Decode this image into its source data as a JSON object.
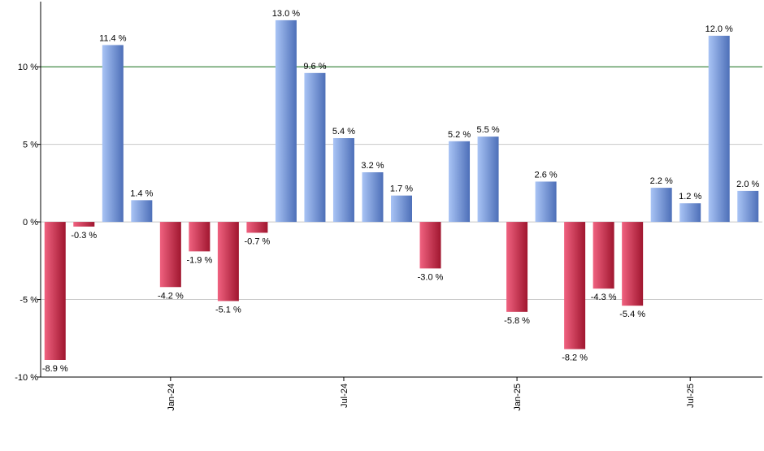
{
  "chart_data": {
    "type": "bar",
    "title": "",
    "xlabel": "",
    "ylabel": "",
    "ylim": [
      -10,
      14.2
    ],
    "yticks": [
      {
        "value": -10,
        "label": "-10 %"
      },
      {
        "value": -5,
        "label": "-5 %"
      },
      {
        "value": 0,
        "label": "0 %"
      },
      {
        "value": 5,
        "label": "5 %"
      },
      {
        "value": 10,
        "label": "10 %"
      }
    ],
    "reference_line": {
      "value": 10,
      "color": "#2e7d32"
    },
    "grid": true,
    "colors": {
      "positive_light": "#a9c4f5",
      "positive_dark": "#4d6fb8",
      "negative_light": "#f06280",
      "negative_dark": "#a0162f",
      "gridline": "#c8c8c8",
      "axis": "#000000"
    },
    "values": [
      -8.9,
      -0.3,
      11.4,
      1.4,
      -4.2,
      -1.9,
      -5.1,
      -0.7,
      13.0,
      9.6,
      5.4,
      3.2,
      1.7,
      -3.0,
      5.2,
      5.5,
      -5.8,
      2.6,
      -8.2,
      -4.3,
      -5.4,
      2.2,
      1.2,
      12.0,
      2.0
    ],
    "value_labels": [
      "-8.9 %",
      "-0.3 %",
      "11.4 %",
      "1.4 %",
      "-4.2 %",
      "-1.9 %",
      "-5.1 %",
      "-0.7 %",
      "13.0 %",
      "9.6 %",
      "5.4 %",
      "3.2 %",
      "1.7 %",
      "-3.0 %",
      "5.2 %",
      "5.5 %",
      "-5.8 %",
      "2.6 %",
      "-8.2 %",
      "-4.3 %",
      "-5.4 %",
      "2.2 %",
      "1.2 %",
      "12.0 %",
      "2.0 %"
    ],
    "xticks": [
      {
        "label": "Jan-24",
        "index": 4.5
      },
      {
        "label": "Jul-24",
        "index": 10.5
      },
      {
        "label": "Jan-25",
        "index": 16.5
      },
      {
        "label": "Jul-25",
        "index": 22.5
      }
    ]
  }
}
